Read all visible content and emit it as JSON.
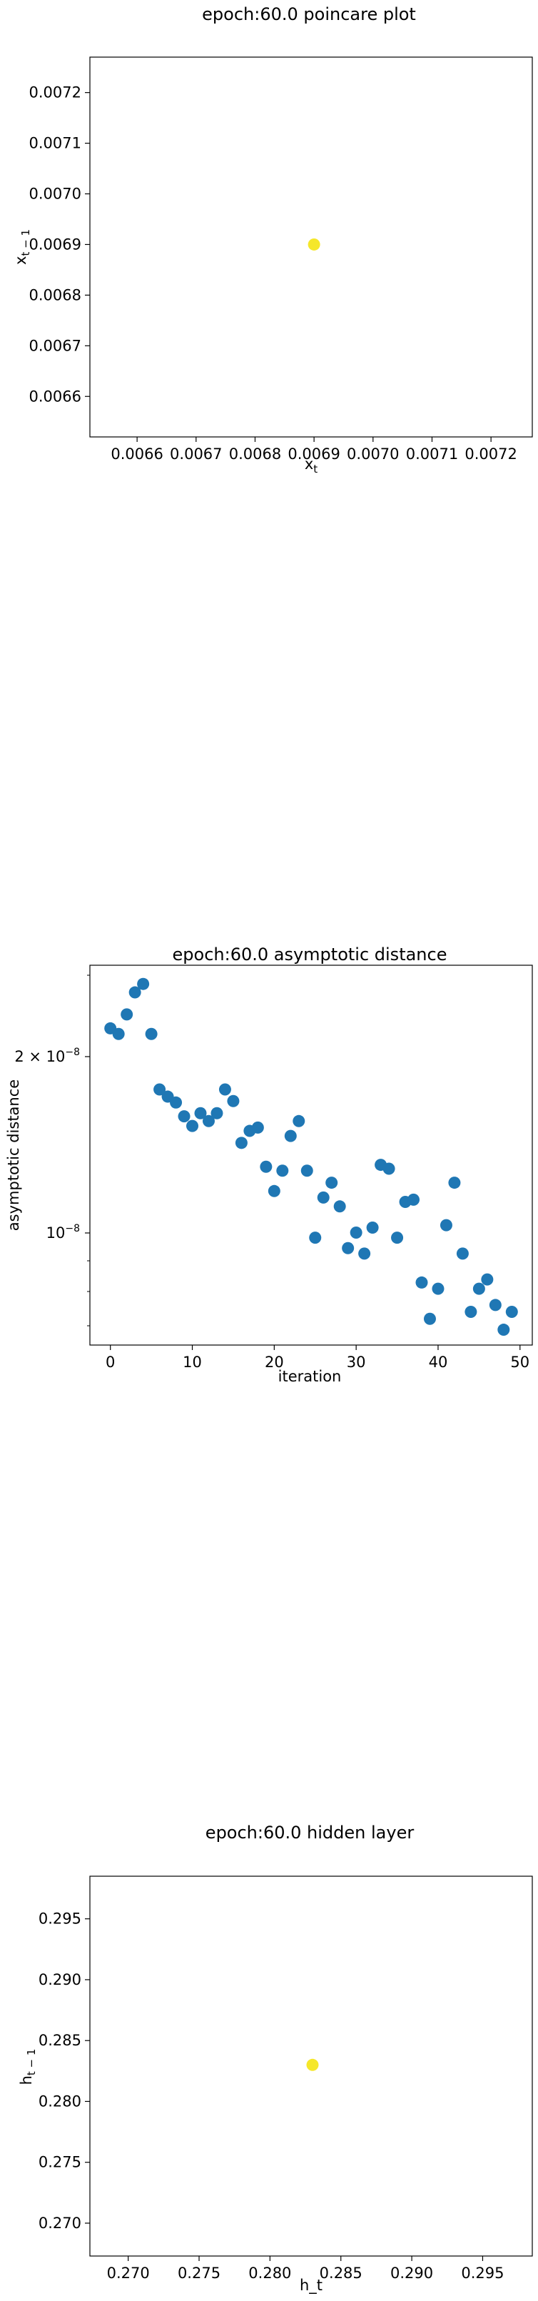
{
  "chart_data": [
    {
      "type": "scatter",
      "title": "epoch:60.0 poincare plot",
      "xlabel": "x_t",
      "ylabel": "x_{t-1}",
      "xlim": [
        0.00652,
        0.00727
      ],
      "ylim": [
        0.00652,
        0.00727
      ],
      "xticks": [
        "0.0066",
        "0.0067",
        "0.0068",
        "0.0069",
        "0.0070",
        "0.0071",
        "0.0072"
      ],
      "yticks": [
        "0.0066",
        "0.0067",
        "0.0068",
        "0.0069",
        "0.0070",
        "0.0071",
        "0.0072"
      ],
      "point_color": "#f5e72a",
      "x": [
        0.0069
      ],
      "y": [
        0.0069
      ]
    },
    {
      "type": "scatter",
      "title": "epoch:60.0 asymptotic distance",
      "xlabel": "iteration",
      "ylabel": "asymptotic distance",
      "yscale": "log",
      "xlim": [
        -2.5,
        51.5
      ],
      "ylim": [
        6.3e-09,
        2.9e-08
      ],
      "xticks": [
        "0",
        "10",
        "20",
        "30",
        "40",
        "50"
      ],
      "yticks": [
        "2 × 10^-8",
        "10^-8"
      ],
      "point_color": "#1f77b4",
      "x": [
        0,
        1,
        2,
        3,
        4,
        5,
        6,
        7,
        8,
        9,
        10,
        11,
        12,
        13,
        14,
        15,
        16,
        17,
        18,
        19,
        20,
        21,
        22,
        23,
        24,
        25,
        26,
        27,
        28,
        29,
        30,
        31,
        32,
        33,
        34,
        35,
        36,
        37,
        38,
        39,
        40,
        41,
        42,
        43,
        44,
        45,
        46,
        47,
        48,
        49
      ],
      "y": [
        2.25e-08,
        2.2e-08,
        2.38e-08,
        2.6e-08,
        2.69e-08,
        2.2e-08,
        1.76e-08,
        1.71e-08,
        1.67e-08,
        1.58e-08,
        1.52e-08,
        1.6e-08,
        1.55e-08,
        1.6e-08,
        1.76e-08,
        1.68e-08,
        1.42e-08,
        1.49e-08,
        1.51e-08,
        1.29e-08,
        1.17e-08,
        1.27e-08,
        1.46e-08,
        1.55e-08,
        1.27e-08,
        9.7e-09,
        1.14e-08,
        1.21e-08,
        1.1e-08,
        9.3e-09,
        9.9e-09,
        9.1e-09,
        1.01e-08,
        1.3e-08,
        1.28e-08,
        9.7e-09,
        1.12e-08,
        1.13e-08,
        8.1e-09,
        7e-09,
        7.9e-09,
        1.02e-08,
        1.21e-08,
        9.1e-09,
        7.2e-09,
        7.9e-09,
        8.2e-09,
        7.4e-09,
        6.7e-09,
        7.2e-09
      ]
    },
    {
      "type": "scatter",
      "title": "epoch:60.0 hidden layer",
      "xlabel": "h_t",
      "ylabel": "h_{t-1}",
      "xlim": [
        0.2673,
        0.2985
      ],
      "ylim": [
        0.2673,
        0.2985
      ],
      "xticks": [
        "0.270",
        "0.275",
        "0.280",
        "0.285",
        "0.290",
        "0.295"
      ],
      "yticks": [
        "0.270",
        "0.275",
        "0.280",
        "0.285",
        "0.290",
        "0.295"
      ],
      "point_color": "#f5e72a",
      "x": [
        0.283
      ],
      "y": [
        0.283
      ]
    }
  ]
}
